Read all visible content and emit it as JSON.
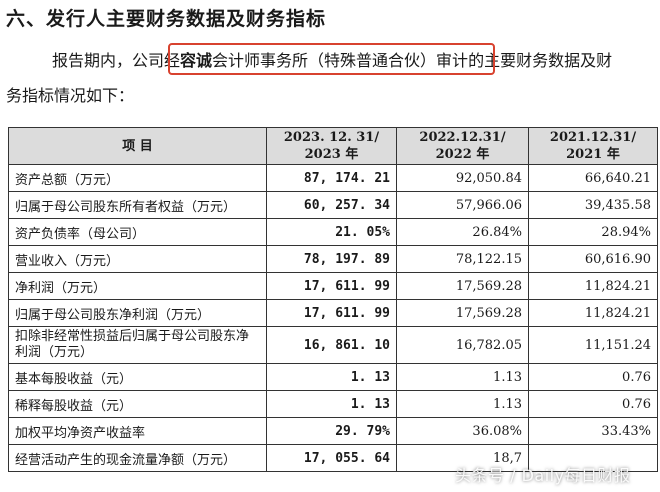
{
  "heading": "六、发行人主要财务数据及财务指标",
  "paragraph": {
    "pre": "报告期内，公司",
    "highlight_pre": "经",
    "highlight_bold": "容诚",
    "highlight_post": "会计师事务所（特殊普通合伙）审计",
    "post": "的主要财务数据及财",
    "line2": "务指标情况如下："
  },
  "table": {
    "headers": {
      "item": "项 目",
      "col1_l1": "2023. 12. 31/",
      "col1_l2": "2023 年",
      "col2_l1": "2022.12.31/",
      "col2_l2": "2022 年",
      "col3_l1": "2021.12.31/",
      "col3_l2": "2021 年"
    },
    "rows": [
      {
        "label": "资产总额（万元）",
        "v2023": "87, 174. 21",
        "v2022": "92,050.84",
        "v2021": "66,640.21"
      },
      {
        "label": "归属于母公司股东所有者权益（万元）",
        "v2023": "60, 257. 34",
        "v2022": "57,966.06",
        "v2021": "39,435.58"
      },
      {
        "label": "资产负债率（母公司）",
        "v2023": "21. 05%",
        "v2022": "26.84%",
        "v2021": "28.94%"
      },
      {
        "label": "营业收入（万元）",
        "v2023": "78, 197. 89",
        "v2022": "78,122.15",
        "v2021": "60,616.90"
      },
      {
        "label": "净利润（万元）",
        "v2023": "17, 611. 99",
        "v2022": "17,569.28",
        "v2021": "11,824.21"
      },
      {
        "label": "归属于母公司股东净利润（万元）",
        "v2023": "17, 611. 99",
        "v2022": "17,569.28",
        "v2021": "11,824.21"
      },
      {
        "label": "扣除非经常性损益后归属于母公司股东净利润（万元）",
        "v2023": "16, 861. 10",
        "v2022": "16,782.05",
        "v2021": "11,151.24"
      },
      {
        "label": "基本每股收益（元）",
        "v2023": "1. 13",
        "v2022": "1.13",
        "v2021": "0.76"
      },
      {
        "label": "稀释每股收益（元）",
        "v2023": "1. 13",
        "v2022": "1.13",
        "v2021": "0.76"
      },
      {
        "label": "加权平均净资产收益率",
        "v2023": "29. 79%",
        "v2022": "36.08%",
        "v2021": "33.43%"
      },
      {
        "label": "经营活动产生的现金流量净额（万元）",
        "v2023": "17, 055. 64",
        "v2022": "18,7",
        "v2021": ""
      }
    ]
  },
  "watermark": "头条号 / Daily每日财报"
}
